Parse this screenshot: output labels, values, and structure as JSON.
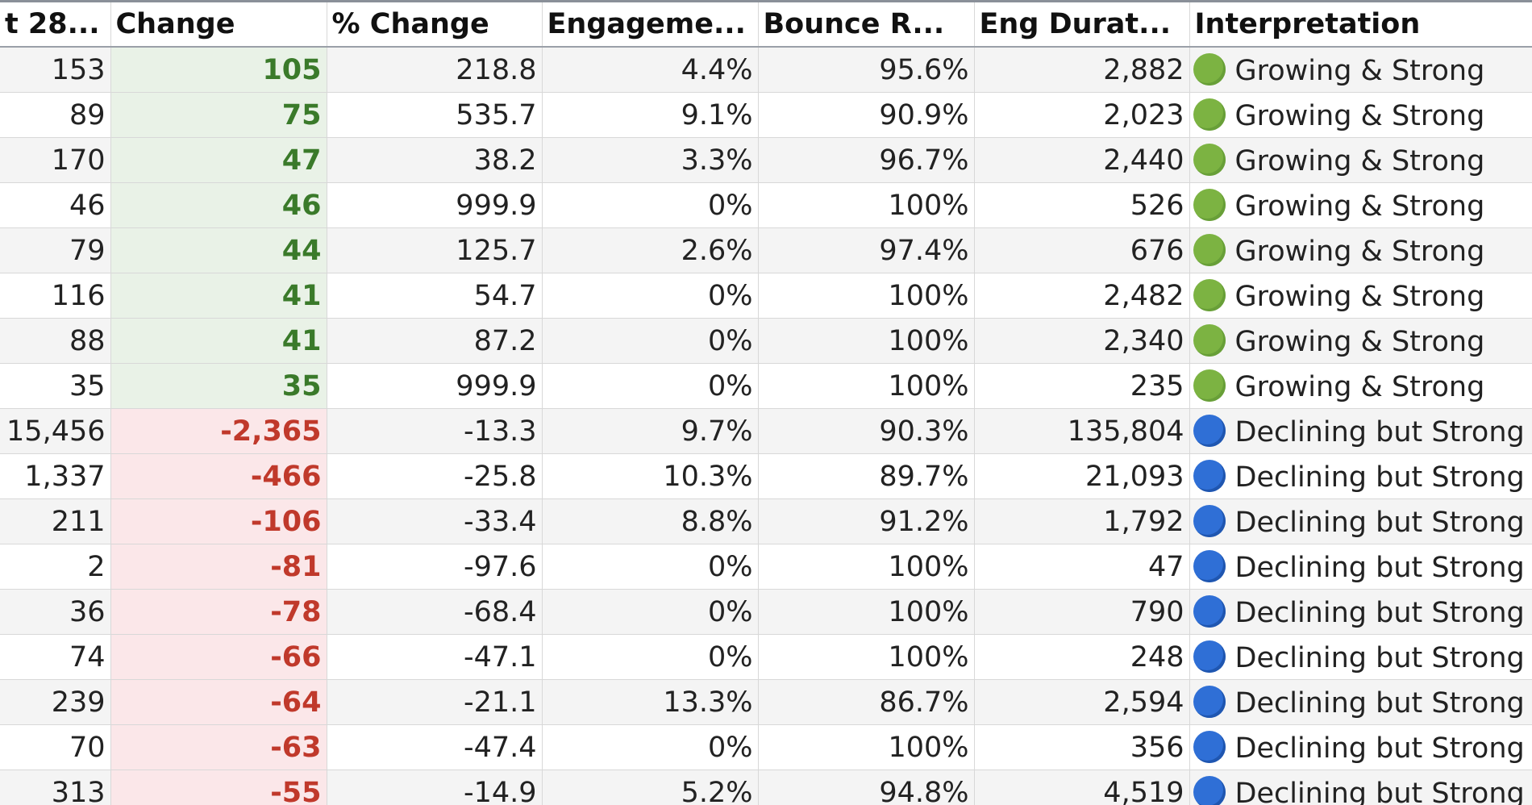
{
  "table": {
    "headers": [
      "t 28...",
      "Change",
      "% Change",
      "Engageme...",
      "Bounce R...",
      "Eng Durat...",
      "Interpretation"
    ],
    "rows": [
      [
        "153",
        "105",
        "218.8",
        "4.4%",
        "95.6%",
        "2,882",
        "Growing & Strong"
      ],
      [
        "89",
        "75",
        "535.7",
        "9.1%",
        "90.9%",
        "2,023",
        "Growing & Strong"
      ],
      [
        "170",
        "47",
        "38.2",
        "3.3%",
        "96.7%",
        "2,440",
        "Growing & Strong"
      ],
      [
        "46",
        "46",
        "999.9",
        "0%",
        "100%",
        "526",
        "Growing & Strong"
      ],
      [
        "79",
        "44",
        "125.7",
        "2.6%",
        "97.4%",
        "676",
        "Growing & Strong"
      ],
      [
        "116",
        "41",
        "54.7",
        "0%",
        "100%",
        "2,482",
        "Growing & Strong"
      ],
      [
        "88",
        "41",
        "87.2",
        "0%",
        "100%",
        "2,340",
        "Growing & Strong"
      ],
      [
        "35",
        "35",
        "999.9",
        "0%",
        "100%",
        "235",
        "Growing & Strong"
      ],
      [
        "15,456",
        "-2,365",
        "-13.3",
        "9.7%",
        "90.3%",
        "135,804",
        "Declining but Strong"
      ],
      [
        "1,337",
        "-466",
        "-25.8",
        "10.3%",
        "89.7%",
        "21,093",
        "Declining but Strong"
      ],
      [
        "211",
        "-106",
        "-33.4",
        "8.8%",
        "91.2%",
        "1,792",
        "Declining but Strong"
      ],
      [
        "2",
        "-81",
        "-97.6",
        "0%",
        "100%",
        "47",
        "Declining but Strong"
      ],
      [
        "36",
        "-78",
        "-68.4",
        "0%",
        "100%",
        "790",
        "Declining but Strong"
      ],
      [
        "74",
        "-66",
        "-47.1",
        "0%",
        "100%",
        "248",
        "Declining but Strong"
      ],
      [
        "239",
        "-64",
        "-21.1",
        "13.3%",
        "86.7%",
        "2,594",
        "Declining but Strong"
      ],
      [
        "70",
        "-63",
        "-47.4",
        "0%",
        "100%",
        "356",
        "Declining but Strong"
      ],
      [
        "313",
        "-55",
        "-14.9",
        "5.2%",
        "94.8%",
        "4,519",
        "Declining but Strong"
      ]
    ]
  }
}
